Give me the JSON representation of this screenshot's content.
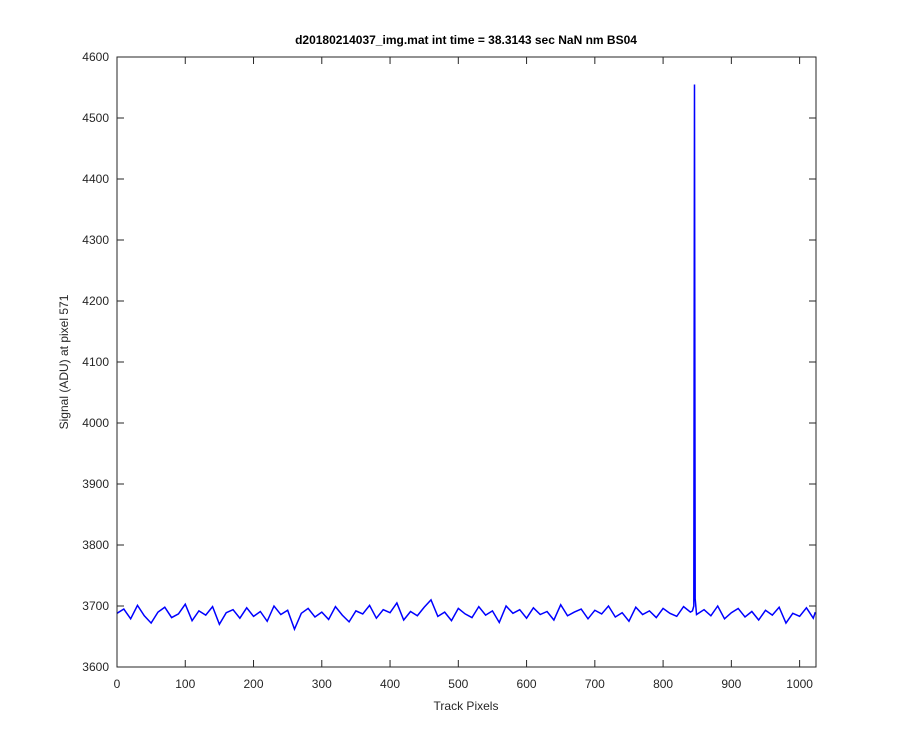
{
  "chart_data": {
    "type": "line",
    "title": "d20180214037_img.mat int time = 38.3143 sec  NaN nm BS04",
    "xlabel": "Track Pixels",
    "ylabel": "Signal (ADU) at pixel 571",
    "x": [
      0,
      10,
      20,
      30,
      40,
      50,
      60,
      70,
      80,
      90,
      100,
      110,
      120,
      130,
      140,
      150,
      160,
      170,
      180,
      190,
      200,
      210,
      220,
      230,
      240,
      250,
      260,
      270,
      280,
      290,
      300,
      310,
      320,
      330,
      340,
      350,
      360,
      370,
      380,
      390,
      400,
      410,
      420,
      430,
      440,
      450,
      460,
      470,
      480,
      490,
      500,
      510,
      520,
      530,
      540,
      550,
      560,
      570,
      580,
      590,
      600,
      610,
      620,
      630,
      640,
      650,
      660,
      670,
      680,
      690,
      700,
      710,
      720,
      730,
      740,
      750,
      760,
      770,
      780,
      790,
      800,
      810,
      820,
      830,
      840,
      843,
      845,
      846,
      847,
      849,
      860,
      870,
      880,
      890,
      900,
      910,
      920,
      930,
      940,
      950,
      960,
      970,
      980,
      990,
      1000,
      1010,
      1020,
      1023
    ],
    "series": [
      {
        "name": "signal",
        "color": "#0000ff",
        "values": [
          3688,
          3695,
          3679,
          3701,
          3684,
          3672,
          3690,
          3698,
          3681,
          3687,
          3703,
          3676,
          3692,
          3685,
          3699,
          3670,
          3689,
          3694,
          3680,
          3697,
          3683,
          3691,
          3675,
          3700,
          3686,
          3693,
          3662,
          3688,
          3696,
          3682,
          3690,
          3678,
          3699,
          3685,
          3674,
          3692,
          3687,
          3701,
          3680,
          3694,
          3689,
          3705,
          3677,
          3691,
          3684,
          3698,
          3710,
          3683,
          3690,
          3676,
          3696,
          3687,
          3681,
          3699,
          3685,
          3692,
          3673,
          3700,
          3688,
          3694,
          3680,
          3697,
          3686,
          3691,
          3677,
          3702,
          3684,
          3690,
          3695,
          3679,
          3693,
          3687,
          3700,
          3682,
          3689,
          3675,
          3698,
          3686,
          3692,
          3681,
          3696,
          3688,
          3683,
          3699,
          3690,
          3692,
          3700,
          4555,
          3712,
          3686,
          3694,
          3684,
          3700,
          3679,
          3689,
          3696,
          3682,
          3691,
          3677,
          3693,
          3685,
          3698,
          3672,
          3688,
          3683,
          3697,
          3680,
          3690
        ]
      }
    ],
    "xlim": [
      0,
      1024
    ],
    "xticks": [
      0,
      100,
      200,
      300,
      400,
      500,
      600,
      700,
      800,
      900,
      1000
    ],
    "ylim": [
      3600,
      4600
    ],
    "yticks": [
      3600,
      3700,
      3800,
      3900,
      4000,
      4100,
      4200,
      4300,
      4400,
      4500,
      4600
    ],
    "grid": false
  }
}
